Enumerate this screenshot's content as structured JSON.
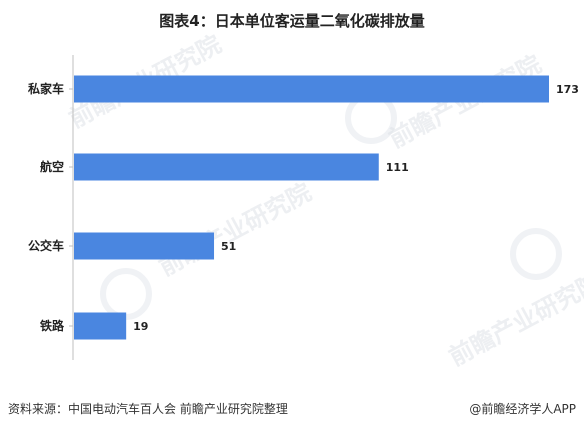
{
  "header": {
    "title": "图表4：日本单位客运量二氧化碳排放量"
  },
  "watermark": {
    "text": "前瞻产业研究院"
  },
  "footer": {
    "source": "资料来源：中国电动汽车百人会 前瞻产业研究院整理",
    "brand": "@前瞻经济学人APP"
  },
  "chart_data": {
    "type": "bar",
    "orientation": "horizontal",
    "categories": [
      "私家车",
      "航空",
      "公交车",
      "铁路"
    ],
    "values": [
      173,
      111,
      51,
      19
    ],
    "title": "图表4：日本单位客运量二氧化碳排放量",
    "xlabel": "",
    "ylabel": "",
    "xlim": [
      0,
      180
    ],
    "grid": false,
    "bar_color": "#4a86e0"
  }
}
